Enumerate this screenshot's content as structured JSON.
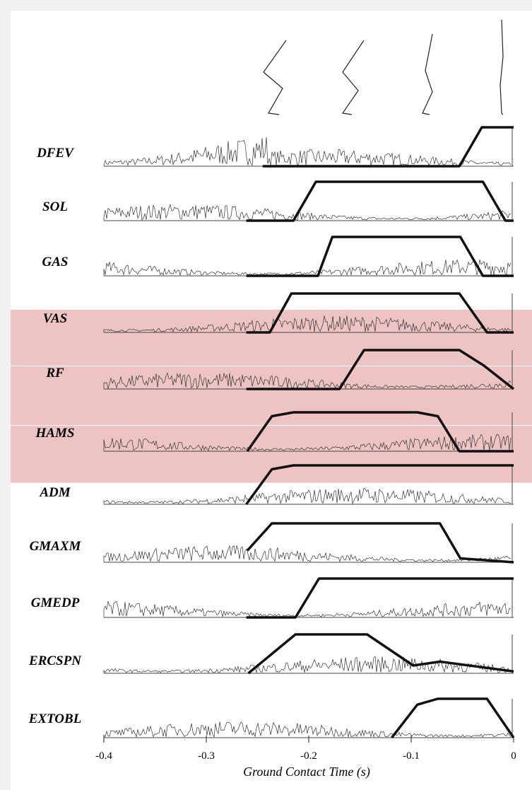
{
  "chart_data": {
    "type": "line",
    "xlabel": "Ground Contact Time (s)",
    "xlim": [
      -0.4,
      0
    ],
    "ylim": [
      0,
      1
    ],
    "xticks": [
      {
        "value": -0.4,
        "label": "-0.4"
      },
      {
        "value": -0.3,
        "label": "-0.3"
      },
      {
        "value": -0.2,
        "label": "-0.2"
      },
      {
        "value": -0.1,
        "label": "-0.1"
      },
      0
    ],
    "color": "#111111",
    "highlighted": [
      "VAS",
      "RF",
      "HAMS"
    ],
    "series": [
      {
        "name": "DFEV",
        "x": [
          -0.245,
          -0.053,
          -0.031,
          0
        ],
        "values": [
          0,
          0,
          1,
          1
        ]
      },
      {
        "name": "SOL",
        "x": [
          -0.261,
          -0.215,
          -0.193,
          -0.03,
          -0.008,
          0
        ],
        "values": [
          0,
          0,
          1,
          1,
          0,
          0
        ]
      },
      {
        "name": "GAS",
        "x": [
          -0.261,
          -0.191,
          -0.177,
          -0.052,
          -0.03,
          0
        ],
        "values": [
          0,
          0,
          1,
          1,
          0,
          0
        ]
      },
      {
        "name": "VAS",
        "x": [
          -0.261,
          -0.238,
          -0.217,
          -0.053,
          -0.026,
          0
        ],
        "values": [
          0,
          0,
          1,
          1,
          0,
          0
        ]
      },
      {
        "name": "RF",
        "x": [
          -0.261,
          -0.17,
          -0.146,
          -0.053,
          -0.029,
          0
        ],
        "values": [
          0,
          0,
          1,
          1,
          0.6,
          0
        ]
      },
      {
        "name": "HAMS",
        "x": [
          -0.26,
          -0.236,
          -0.215,
          -0.094,
          -0.074,
          -0.053,
          0
        ],
        "values": [
          0,
          0.9,
          1,
          1,
          0.9,
          0,
          0
        ]
      },
      {
        "name": "ADM",
        "x": [
          -0.261,
          -0.236,
          -0.215,
          0
        ],
        "values": [
          0,
          0.9,
          1,
          1
        ]
      },
      {
        "name": "GMAXM",
        "x": [
          -0.26,
          -0.236,
          -0.072,
          -0.052,
          0
        ],
        "values": [
          0.3,
          1,
          1,
          0.1,
          0
        ]
      },
      {
        "name": "GMEDP",
        "x": [
          -0.261,
          -0.213,
          -0.19,
          0
        ],
        "values": [
          0,
          0,
          1,
          1
        ]
      },
      {
        "name": "ERCSPN",
        "x": [
          -0.259,
          -0.213,
          -0.143,
          -0.098,
          -0.072,
          0
        ],
        "values": [
          0,
          1,
          1,
          0.2,
          0.3,
          0.05
        ]
      },
      {
        "name": "EXTOBL",
        "x": [
          -0.119,
          -0.094,
          -0.074,
          -0.026,
          0
        ],
        "values": [
          0,
          0.85,
          1,
          1,
          0
        ]
      }
    ]
  }
}
